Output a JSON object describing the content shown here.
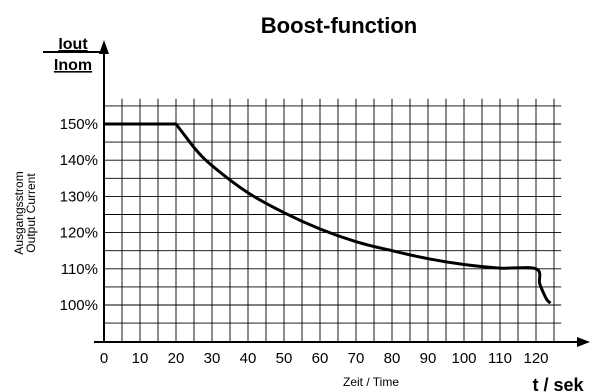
{
  "chart_data": {
    "type": "line",
    "title": "Boost-function",
    "ylabel_fraction": {
      "numerator": "Iout",
      "denominator": "Inom"
    },
    "ylabel_side": [
      "Ausgangsstrom",
      "Output Current"
    ],
    "xlabel": "Zeit / Time",
    "xunit": "t / sek",
    "xlim": [
      0,
      127
    ],
    "ylim": [
      95,
      157
    ],
    "xticks": [
      0,
      10,
      20,
      30,
      40,
      50,
      60,
      70,
      80,
      90,
      100,
      110,
      120
    ],
    "xtick_labels": [
      "0",
      "10",
      "20",
      "30",
      "40",
      "50",
      "60",
      "70",
      "80",
      "90",
      "100",
      "110",
      "120"
    ],
    "yticks": [
      100,
      110,
      120,
      130,
      140,
      150
    ],
    "ytick_labels": [
      "100%",
      "110%",
      "120%",
      "130%",
      "140%",
      "150%"
    ],
    "grid": true,
    "series": [
      {
        "x": [
          0,
          20,
          25,
          30,
          40,
          50,
          60,
          70,
          80,
          90,
          100,
          110,
          120,
          121,
          122,
          123,
          124
        ],
        "y": [
          150,
          150,
          143.5,
          138.5,
          131.0,
          125.5,
          121.0,
          117.5,
          115.0,
          112.8,
          111.2,
          110.2,
          110,
          106,
          103.5,
          101.5,
          100.5
        ]
      }
    ]
  }
}
